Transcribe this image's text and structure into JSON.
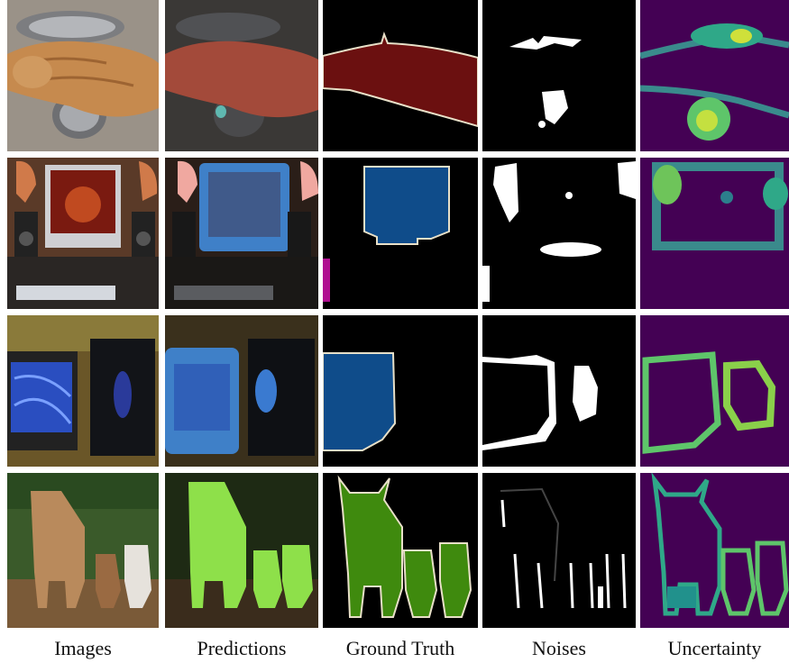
{
  "figure": {
    "columns": [
      {
        "key": "images",
        "label": "Images"
      },
      {
        "key": "predictions",
        "label": "Predictions"
      },
      {
        "key": "ground_truth",
        "label": "Ground Truth"
      },
      {
        "key": "noises",
        "label": "Noises"
      },
      {
        "key": "uncertainty",
        "label": "Uncertainty"
      }
    ],
    "rows": [
      {
        "subject": "cat on sandals",
        "cells": [
          "photo",
          "prediction",
          "ground-truth",
          "noise",
          "uncertainty"
        ]
      },
      {
        "subject": "computer monitor",
        "cells": [
          "photo",
          "prediction",
          "ground-truth",
          "noise",
          "uncertainty"
        ]
      },
      {
        "subject": "crt monitor",
        "cells": [
          "photo",
          "prediction",
          "ground-truth",
          "noise",
          "uncertainty"
        ]
      },
      {
        "subject": "cows",
        "cells": [
          "photo",
          "prediction",
          "ground-truth",
          "noise",
          "uncertainty"
        ]
      }
    ],
    "colors": {
      "cat_mask": "#6b1010",
      "monitor_mask": "#0f4c8a",
      "cow_mask": "#3f8a0e",
      "viridis_low": "#440154",
      "viridis_mid": "#21918c",
      "viridis_high": "#fde725"
    }
  }
}
